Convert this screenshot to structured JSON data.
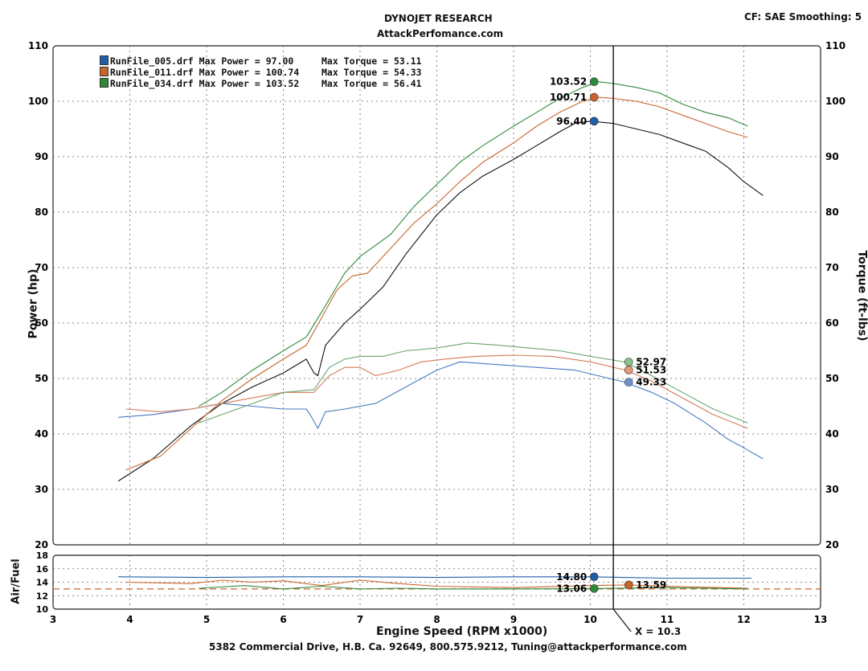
{
  "header": {
    "company": "DYNOJET RESEARCH",
    "site": "AttackPerfomance.com",
    "settings": "CF: SAE  Smoothing: 5"
  },
  "footer": {
    "address": "5382 Commercial Drive, H.B. Ca. 92649, 800.575.9212, Tuning@attackperformance.com"
  },
  "legend": [
    {
      "file": "RunFile_005.drf",
      "power_text": "Max Power = 97.00",
      "torque_text": "Max Torque = 53.11",
      "color": "#1f5fa8"
    },
    {
      "file": "RunFile_011.drf",
      "power_text": "Max Power = 100.74",
      "torque_text": "Max Torque = 54.33",
      "color": "#c8652b"
    },
    {
      "file": "RunFile_034.drf",
      "power_text": "Max Power = 103.52",
      "torque_text": "Max Torque = 56.41",
      "color": "#2e8a3a"
    }
  ],
  "cursor_label": "X = 10.3",
  "chart_data": [
    {
      "type": "line",
      "title": "DYNOJET RESEARCH",
      "xlabel": "Engine Speed (RPM x1000)",
      "ylabel": "Power (hp)",
      "y2label": "Torque (ft-lbs)",
      "xlim": [
        3,
        13
      ],
      "ylim": [
        20,
        110
      ],
      "x_ticks": [
        "3",
        "4",
        "5",
        "6",
        "7",
        "8",
        "9",
        "10",
        "11",
        "12",
        "13"
      ],
      "y_ticks": [
        "20",
        "30",
        "40",
        "50",
        "60",
        "70",
        "80",
        "90",
        "100",
        "110"
      ],
      "cursor_x": 10.3,
      "series": [
        {
          "name": "RunFile_005.drf Power",
          "kind": "power",
          "color": "#111111",
          "x": [
            3.85,
            4.3,
            4.8,
            5.2,
            5.6,
            6.0,
            6.3,
            6.4,
            6.45,
            6.55,
            6.8,
            7.0,
            7.3,
            7.6,
            8.0,
            8.3,
            8.6,
            9.0,
            9.3,
            9.6,
            9.8,
            10.0,
            10.3,
            10.6,
            10.9,
            11.2,
            11.5,
            11.8,
            12.0,
            12.25
          ],
          "y": [
            31.5,
            35.5,
            41.5,
            45.5,
            48.5,
            51.0,
            53.5,
            51.0,
            50.5,
            56.0,
            60.0,
            62.5,
            66.5,
            72.5,
            79.5,
            83.5,
            86.5,
            89.5,
            92.0,
            94.5,
            96.0,
            96.4,
            96.0,
            95.0,
            94.0,
            92.5,
            91.0,
            88.0,
            85.5,
            83.0
          ]
        },
        {
          "name": "RunFile_011.drf Power",
          "kind": "power",
          "color": "#c8652b",
          "x": [
            3.95,
            4.4,
            4.8,
            5.2,
            5.6,
            6.0,
            6.3,
            6.5,
            6.7,
            6.9,
            7.1,
            7.4,
            7.7,
            8.0,
            8.3,
            8.6,
            9.0,
            9.3,
            9.6,
            9.9,
            10.1,
            10.3,
            10.6,
            10.9,
            11.2,
            11.5,
            11.8,
            12.05
          ],
          "y": [
            33.5,
            36.0,
            41.0,
            46.0,
            50.0,
            53.5,
            56.0,
            61.0,
            66.0,
            68.5,
            69.0,
            73.5,
            78.0,
            81.5,
            85.5,
            89.0,
            92.5,
            95.5,
            98.0,
            100.0,
            100.71,
            100.5,
            100.0,
            99.0,
            97.5,
            96.0,
            94.5,
            93.5
          ]
        },
        {
          "name": "RunFile_034.drf Power",
          "kind": "power",
          "color": "#2e8a3a",
          "x": [
            4.9,
            5.2,
            5.6,
            6.0,
            6.3,
            6.5,
            6.8,
            7.0,
            7.4,
            7.7,
            8.0,
            8.3,
            8.6,
            9.0,
            9.3,
            9.6,
            9.9,
            10.1,
            10.3,
            10.6,
            10.9,
            11.2,
            11.5,
            11.8,
            12.05
          ],
          "y": [
            45.0,
            47.5,
            51.5,
            55.0,
            57.5,
            62.0,
            69.0,
            72.0,
            76.0,
            81.0,
            85.0,
            89.0,
            92.0,
            95.5,
            98.0,
            100.5,
            102.5,
            103.52,
            103.2,
            102.5,
            101.5,
            99.5,
            98.0,
            97.0,
            95.5
          ]
        },
        {
          "name": "RunFile_005.drf Torque",
          "kind": "torque",
          "color": "#4a78c4",
          "x": [
            3.85,
            4.3,
            4.8,
            5.2,
            5.6,
            6.0,
            6.3,
            6.35,
            6.45,
            6.55,
            6.8,
            7.2,
            7.6,
            8.0,
            8.3,
            8.8,
            9.3,
            9.8,
            10.1,
            10.45,
            10.8,
            11.1,
            11.5,
            11.8,
            12.0,
            12.25
          ],
          "y": [
            43.0,
            43.5,
            44.5,
            45.5,
            45.0,
            44.5,
            44.5,
            43.5,
            41.0,
            44.0,
            44.5,
            45.5,
            48.5,
            51.5,
            53.0,
            52.5,
            52.0,
            51.5,
            50.5,
            49.33,
            47.5,
            45.5,
            42.0,
            39.0,
            37.5,
            35.5
          ]
        },
        {
          "name": "RunFile_011.drf Torque",
          "kind": "torque",
          "color": "#d47a55",
          "x": [
            3.95,
            4.4,
            4.8,
            5.2,
            5.6,
            6.0,
            6.4,
            6.6,
            6.8,
            7.0,
            7.2,
            7.5,
            7.8,
            8.1,
            8.5,
            9.0,
            9.5,
            10.0,
            10.45,
            10.8,
            11.2,
            11.6,
            12.05
          ],
          "y": [
            44.5,
            44.0,
            44.5,
            45.5,
            46.5,
            47.5,
            47.5,
            50.5,
            52.0,
            52.0,
            50.5,
            51.5,
            53.0,
            53.5,
            54.0,
            54.2,
            54.0,
            53.0,
            51.53,
            49.5,
            46.5,
            43.5,
            41.0
          ]
        },
        {
          "name": "RunFile_034.drf Torque",
          "kind": "torque",
          "color": "#6aa66e",
          "x": [
            4.9,
            5.2,
            5.6,
            6.0,
            6.4,
            6.6,
            6.8,
            7.0,
            7.3,
            7.6,
            8.0,
            8.4,
            8.8,
            9.2,
            9.6,
            10.0,
            10.45,
            10.8,
            11.2,
            11.6,
            12.05
          ],
          "y": [
            42.0,
            43.5,
            45.5,
            47.5,
            48.0,
            52.0,
            53.5,
            54.0,
            54.0,
            55.0,
            55.5,
            56.41,
            56.0,
            55.5,
            55.0,
            54.0,
            52.97,
            50.5,
            47.5,
            44.5,
            42.0
          ]
        }
      ],
      "annotations": [
        {
          "label": "103.52",
          "x": 10.05,
          "y": 103.52,
          "color": "#2e8a3a",
          "side": "left"
        },
        {
          "label": "100.71",
          "x": 10.05,
          "y": 100.71,
          "color": "#c8652b",
          "side": "left"
        },
        {
          "label": "96.40",
          "x": 10.05,
          "y": 96.4,
          "color": "#1f5fa8",
          "side": "left"
        },
        {
          "label": "52.97",
          "x": 10.5,
          "y": 52.97,
          "color": "#8bc08c",
          "side": "right"
        },
        {
          "label": "51.53",
          "x": 10.5,
          "y": 51.53,
          "color": "#e19a78",
          "side": "right"
        },
        {
          "label": "49.33",
          "x": 10.5,
          "y": 49.33,
          "color": "#6a93cf",
          "side": "right"
        }
      ]
    },
    {
      "type": "line",
      "title": "Air/Fuel",
      "ylabel": "Air/Fuel",
      "xlabel": "Engine Speed (RPM x1000)",
      "xlim": [
        3,
        13
      ],
      "ylim": [
        10,
        18
      ],
      "y_ticks": [
        "10",
        "12",
        "14",
        "16",
        "18"
      ],
      "reference_line": 13.0,
      "series": [
        {
          "name": "RunFile_005.drf AFR",
          "color": "#1f5fa8",
          "x": [
            3.85,
            5.0,
            6.0,
            7.0,
            8.0,
            9.0,
            10.0,
            11.0,
            12.1
          ],
          "y": [
            14.8,
            14.7,
            14.8,
            14.8,
            14.7,
            14.8,
            14.8,
            14.6,
            14.6
          ]
        },
        {
          "name": "RunFile_011.drf AFR",
          "color": "#c8652b",
          "x": [
            3.95,
            4.8,
            5.2,
            5.6,
            6.0,
            6.5,
            7.0,
            7.5,
            8.0,
            9.0,
            10.0,
            10.5,
            11.0,
            12.05
          ],
          "y": [
            14.0,
            13.8,
            14.3,
            14.0,
            14.2,
            13.5,
            14.3,
            13.8,
            13.4,
            13.2,
            13.5,
            13.59,
            13.4,
            13.1
          ]
        },
        {
          "name": "RunFile_034.drf AFR",
          "color": "#2e8a3a",
          "x": [
            4.9,
            5.5,
            6.0,
            6.5,
            7.0,
            7.5,
            8.0,
            9.0,
            10.0,
            11.0,
            12.05
          ],
          "y": [
            13.1,
            13.5,
            13.0,
            13.4,
            13.0,
            13.1,
            13.0,
            13.0,
            13.06,
            13.2,
            13.0
          ]
        }
      ],
      "annotations": [
        {
          "label": "14.80",
          "x": 10.05,
          "y": 14.8,
          "color": "#1f5fa8",
          "side": "left"
        },
        {
          "label": "13.06",
          "x": 10.05,
          "y": 13.06,
          "color": "#2e8a3a",
          "side": "left"
        },
        {
          "label": "13.59",
          "x": 10.5,
          "y": 13.59,
          "color": "#c8652b",
          "side": "right"
        }
      ]
    }
  ]
}
